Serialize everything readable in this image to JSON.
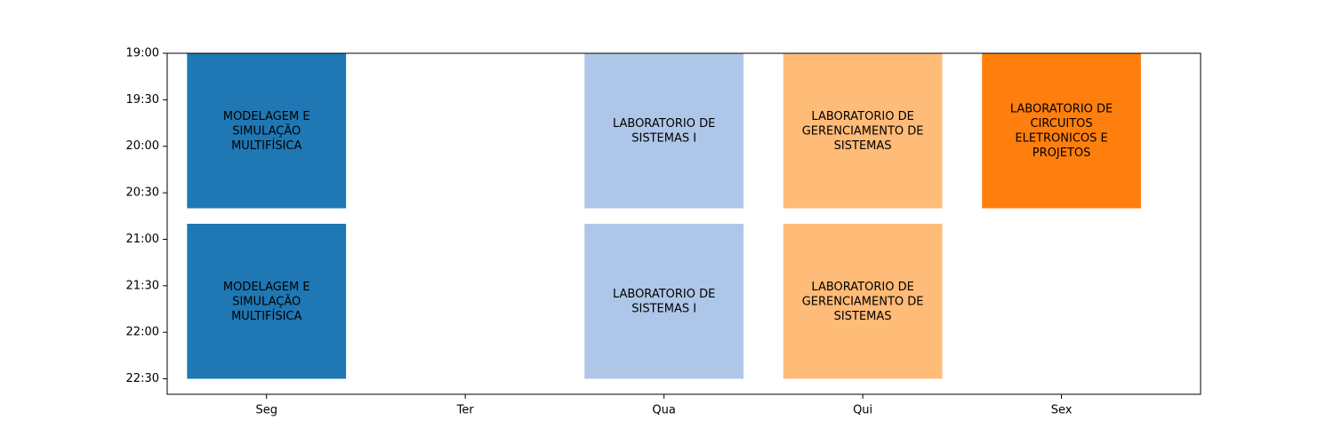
{
  "chart_data": {
    "type": "bar",
    "title": "",
    "xlabel": "",
    "ylabel": "",
    "categories": [
      "Seg",
      "Ter",
      "Qua",
      "Qui",
      "Sex"
    ],
    "y_ticks": [
      "19:00",
      "19:30",
      "20:00",
      "20:30",
      "21:00",
      "21:30",
      "22:00",
      "22:30"
    ],
    "ylim": [
      "19:00",
      "22:40"
    ],
    "y_inverted": true,
    "grid": false,
    "blocks": [
      {
        "day": "Seg",
        "start": "19:00",
        "end": "20:40",
        "label": "MODELAGEM E SIMULAÇÃO MULTIFÍSICA",
        "color": "#1f77b4"
      },
      {
        "day": "Seg",
        "start": "20:50",
        "end": "22:30",
        "label": "MODELAGEM E SIMULAÇÃO MULTIFÍSICA",
        "color": "#1f77b4"
      },
      {
        "day": "Qua",
        "start": "19:00",
        "end": "20:40",
        "label": "LABORATORIO DE SISTEMAS I",
        "color": "#aec7e8"
      },
      {
        "day": "Qua",
        "start": "20:50",
        "end": "22:30",
        "label": "LABORATORIO DE SISTEMAS I",
        "color": "#aec7e8"
      },
      {
        "day": "Qui",
        "start": "19:00",
        "end": "20:40",
        "label": "LABORATORIO DE GERENCIAMENTO DE SISTEMAS",
        "color": "#ffbb78"
      },
      {
        "day": "Qui",
        "start": "20:50",
        "end": "22:30",
        "label": "LABORATORIO DE GERENCIAMENTO DE SISTEMAS",
        "color": "#ffbb78"
      },
      {
        "day": "Sex",
        "start": "19:00",
        "end": "20:40",
        "label": "LABORATORIO DE CIRCUITOS ELETRONICOS E PROJETOS",
        "color": "#ff7f0e"
      }
    ]
  }
}
